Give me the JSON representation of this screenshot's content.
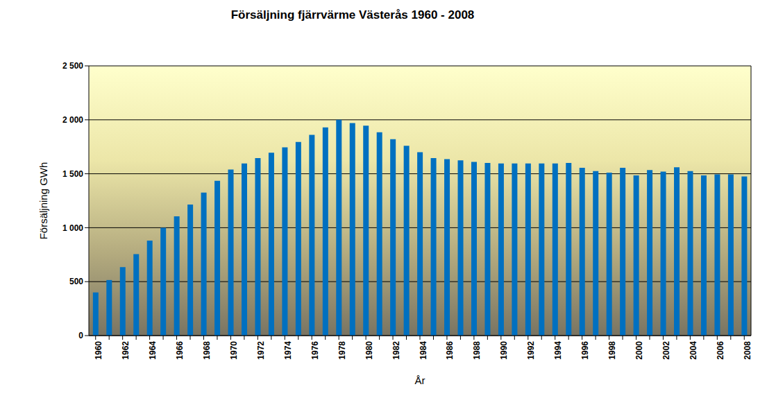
{
  "chart_data": {
    "type": "bar",
    "title": "Försäljning fjärrvärme Västerås 1960 - 2008",
    "x_label": "År",
    "y_label": "Försäljning GWh",
    "categories": [
      "1960",
      null,
      "1962",
      null,
      "1964",
      null,
      "1966",
      null,
      "1968",
      null,
      "1970",
      null,
      "1972",
      null,
      "1974",
      null,
      "1976",
      null,
      "1978",
      null,
      "1980",
      null,
      "1982",
      null,
      "1984",
      null,
      "1986",
      null,
      "1988",
      null,
      "1990",
      null,
      "1992",
      null,
      "1994",
      null,
      "1996",
      null,
      "1998",
      null,
      "2000",
      null,
      "2002",
      null,
      "2004",
      null,
      "2006",
      null,
      "2008"
    ],
    "values": [
      400,
      515,
      635,
      755,
      880,
      1000,
      1105,
      1215,
      1325,
      1435,
      1540,
      1595,
      1645,
      1695,
      1745,
      1795,
      1860,
      1930,
      2000,
      1970,
      1945,
      1885,
      1820,
      1760,
      1700,
      1645,
      1635,
      1625,
      1610,
      1600,
      1595,
      1595,
      1595,
      1595,
      1595,
      1600,
      1555,
      1525,
      1510,
      1555,
      1485,
      1535,
      1520,
      1560,
      1525,
      1485,
      1495,
      1495,
      1475
    ],
    "color": "#0070c0",
    "ylim": [
      0,
      2500
    ],
    "yticks": [
      0,
      500,
      {
        "value": 1000,
        "label": "1 000"
      },
      {
        "value": 1500,
        "label": "1 500"
      },
      {
        "value": 2000,
        "label": "2 000"
      },
      {
        "value": 2500,
        "label": "2 500"
      }
    ],
    "grid": true
  }
}
